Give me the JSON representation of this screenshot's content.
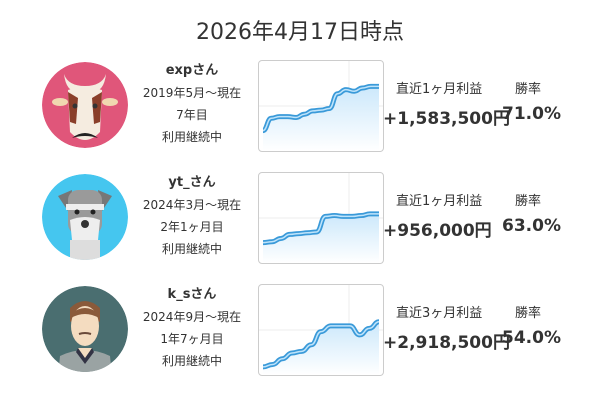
{
  "title": "2026年4月17日時点",
  "colors": {
    "line": "#3a9ad9",
    "fill": "#cce8fb",
    "avatar_exp": "#e0567a",
    "avatar_yt": "#45c6ef",
    "avatar_ks": "#4a6e70"
  },
  "users": [
    {
      "name": "expさん",
      "since": "2019年5月〜現在",
      "duration": "7年目",
      "status": "利用継続中",
      "avatar_icon": "cow-avatar-icon",
      "profit_label": "直近1ヶ月利益",
      "profit": "+1,583,500円",
      "winrate_label": "勝率",
      "winrate": "71.0%",
      "chart_data": {
        "type": "area",
        "values": [
          20,
          35,
          37,
          37,
          36,
          40,
          44,
          45,
          47,
          65,
          70,
          68,
          72,
          74,
          74
        ]
      }
    },
    {
      "name": "yt_さん",
      "since": "2024年3月〜現在",
      "duration": "2年1ヶ月目",
      "status": "利用継続中",
      "avatar_icon": "dog-avatar-icon",
      "profit_label": "直近1ヶ月利益",
      "profit": "+956,000円",
      "winrate_label": "勝率",
      "winrate": "63.0%",
      "chart_data": {
        "type": "area",
        "values": [
          20,
          21,
          25,
          30,
          31,
          32,
          33,
          52,
          53,
          52,
          52,
          53,
          55,
          55
        ]
      }
    },
    {
      "name": "k_sさん",
      "since": "2024年9月〜現在",
      "duration": "1年7ヶ月目",
      "status": "利用継続中",
      "avatar_icon": "man-avatar-icon",
      "profit_label": "直近3ヶ月利益",
      "profit": "+2,918,500円",
      "winrate_label": "勝率",
      "winrate": "54.0%",
      "chart_data": {
        "type": "area",
        "values": [
          5,
          8,
          15,
          22,
          24,
          32,
          48,
          55,
          55,
          55,
          44,
          52,
          60
        ]
      }
    }
  ]
}
